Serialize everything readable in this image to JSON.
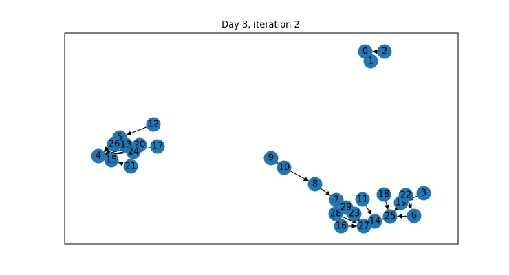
{
  "title": "Day 3, iteration 2",
  "colors": {
    "node": "#1f77b4",
    "edge": "#000000",
    "frame": "#000000"
  },
  "nodes": [
    {
      "id": "0",
      "label": "0"
    },
    {
      "id": "1",
      "label": "1"
    },
    {
      "id": "2",
      "label": "2"
    },
    {
      "id": "3",
      "label": "3"
    },
    {
      "id": "4",
      "label": "4"
    },
    {
      "id": "5",
      "label": "5"
    },
    {
      "id": "6",
      "label": "6"
    },
    {
      "id": "7",
      "label": "7"
    },
    {
      "id": "8",
      "label": "8"
    },
    {
      "id": "9",
      "label": "9"
    },
    {
      "id": "10",
      "label": "10"
    },
    {
      "id": "11",
      "label": "11"
    },
    {
      "id": "12",
      "label": "12"
    },
    {
      "id": "13",
      "label": "13"
    },
    {
      "id": "14",
      "label": "14"
    },
    {
      "id": "15",
      "label": "15"
    },
    {
      "id": "16",
      "label": "16"
    },
    {
      "id": "17",
      "label": "17"
    },
    {
      "id": "18",
      "label": "18"
    },
    {
      "id": "19",
      "label": "19"
    },
    {
      "id": "20",
      "label": "20"
    },
    {
      "id": "21",
      "label": "21"
    },
    {
      "id": "22",
      "label": "22"
    },
    {
      "id": "23",
      "label": "23"
    },
    {
      "id": "24",
      "label": "24"
    },
    {
      "id": "25",
      "label": "25"
    },
    {
      "id": "26",
      "label": "26"
    },
    {
      "id": "27",
      "label": "27"
    },
    {
      "id": "28",
      "label": "28"
    },
    {
      "id": "29",
      "label": "29"
    }
  ],
  "edges": [
    {
      "from": "2",
      "to": "0"
    },
    {
      "from": "12",
      "to": "5"
    },
    {
      "from": "5",
      "to": "4"
    },
    {
      "from": "26",
      "to": "4"
    },
    {
      "from": "13",
      "to": "4"
    },
    {
      "from": "20",
      "to": "4"
    },
    {
      "from": "24",
      "to": "4"
    },
    {
      "from": "17",
      "to": "4"
    },
    {
      "from": "21",
      "to": "15"
    },
    {
      "from": "9",
      "to": "10"
    },
    {
      "from": "10",
      "to": "8"
    },
    {
      "from": "8",
      "to": "7"
    },
    {
      "from": "7",
      "to": "27"
    },
    {
      "from": "29",
      "to": "27"
    },
    {
      "from": "23",
      "to": "27"
    },
    {
      "from": "28",
      "to": "27"
    },
    {
      "from": "16",
      "to": "27"
    },
    {
      "from": "11",
      "to": "14"
    },
    {
      "from": "25",
      "to": "14"
    },
    {
      "from": "6",
      "to": "25"
    },
    {
      "from": "18",
      "to": "25"
    },
    {
      "from": "19",
      "to": "25"
    },
    {
      "from": "3",
      "to": "19"
    },
    {
      "from": "22",
      "to": "6"
    }
  ]
}
